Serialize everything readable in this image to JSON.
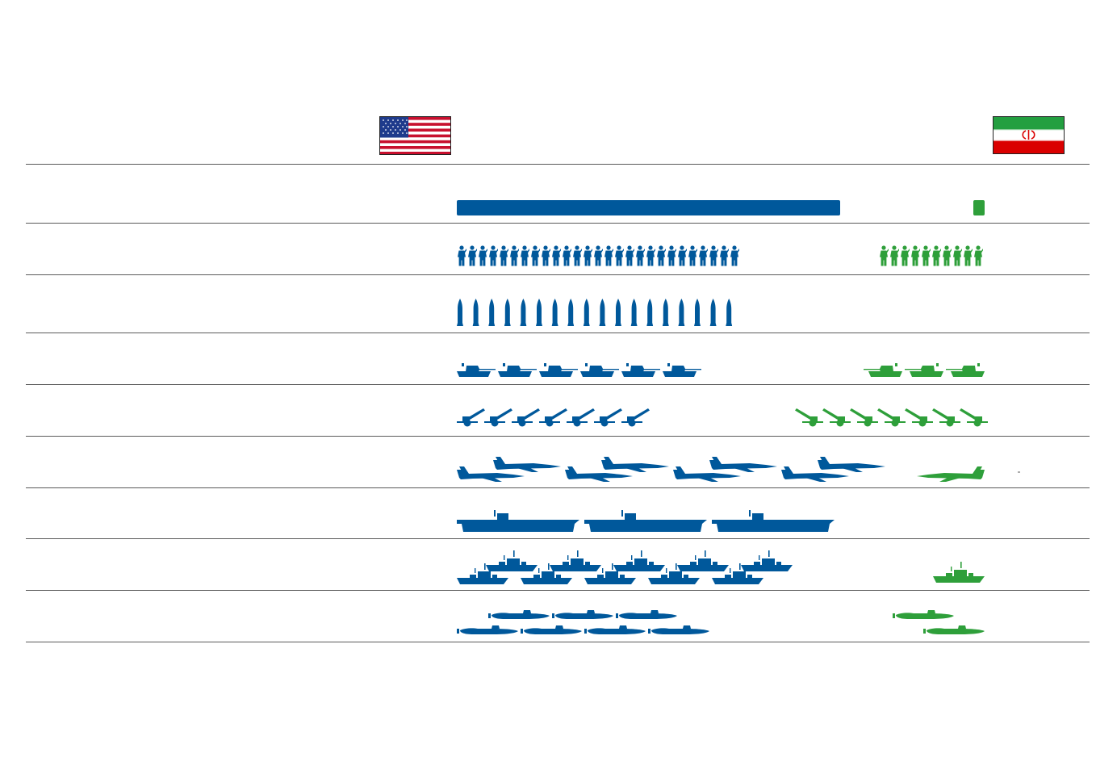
{
  "colors": {
    "us": "#00589b",
    "iran": "#2e9f3a",
    "rule": "#5a5a5a"
  },
  "flags": {
    "left": "us-flag-icon",
    "right": "iran-flag-icon"
  },
  "chart_data": {
    "type": "pictogram",
    "title": "",
    "xlabel": "",
    "ylabel": "",
    "legend": "none",
    "grid": false,
    "categories": [
      "budget",
      "soldiers",
      "missiles",
      "tanks",
      "artillery",
      "fighter-jets",
      "aircraft-carriers",
      "warships",
      "submarines"
    ],
    "series": [
      {
        "icons": [
          "bar",
          "soldier-icon",
          "missile-icon",
          "tank-icon",
          "artillery-icon",
          "fighter-jet-icon",
          "aircraft-carrier-icon",
          "warship-icon",
          "submarine-icon"
        ],
        "values": [
          1.0,
          27,
          18,
          6,
          7,
          8,
          3,
          10,
          7
        ]
      },
      {
        "icons": [
          "bar",
          "soldier-icon",
          "missile-icon",
          "tank-icon",
          "artillery-icon",
          "fighter-jet-icon",
          "aircraft-carrier-icon",
          "warship-icon",
          "submarine-icon"
        ],
        "values": [
          0.03,
          10,
          0,
          3,
          7,
          1,
          0,
          1,
          2
        ]
      }
    ]
  }
}
